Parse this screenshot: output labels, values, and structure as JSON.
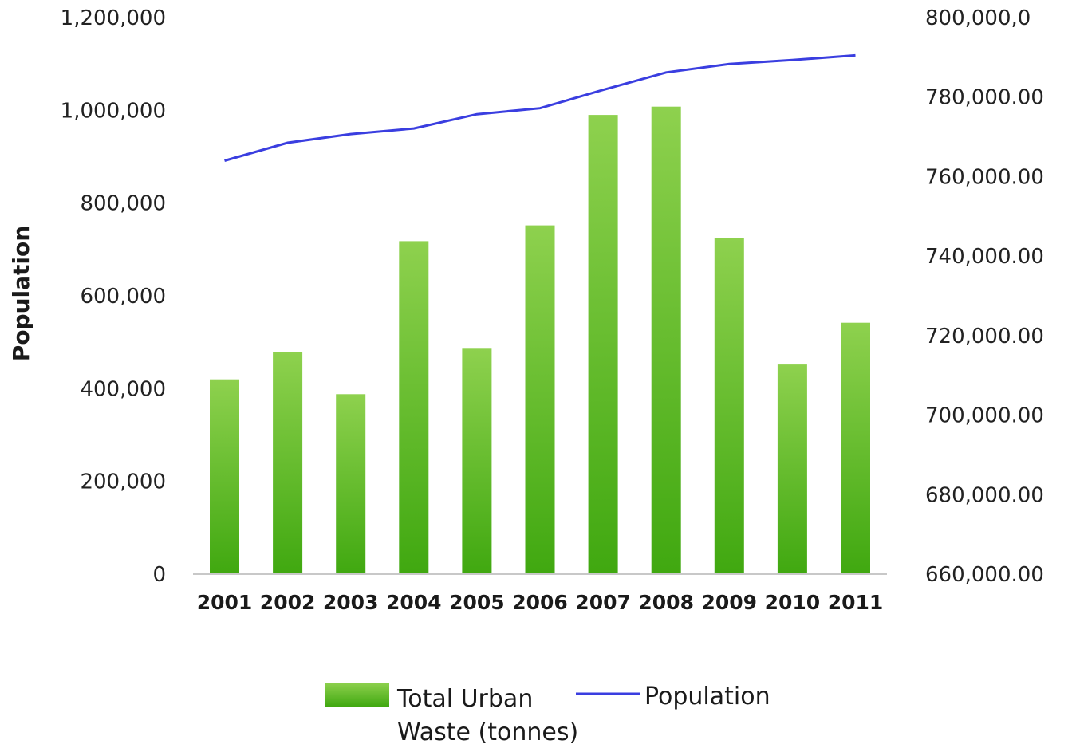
{
  "chart_data": {
    "type": "bar",
    "categories": [
      "2001",
      "2002",
      "2003",
      "2004",
      "2005",
      "2006",
      "2007",
      "2008",
      "2009",
      "2010",
      "2011"
    ],
    "series": [
      {
        "name": "Total Urban Waste (tonnes)",
        "type": "bar",
        "axis": "left",
        "color": "#5fbf2a",
        "values": [
          420000,
          478000,
          388000,
          718000,
          486000,
          752000,
          990000,
          1008000,
          725000,
          452000,
          542000
        ]
      },
      {
        "name": "Population",
        "type": "line",
        "axis": "right",
        "color": "#3a3ee0",
        "values": [
          764000,
          768500,
          770700,
          772100,
          775700,
          777200,
          781800,
          786200,
          788300,
          789300,
          790500
        ]
      }
    ],
    "legend": {
      "bar_label_line1": "Total Urban",
      "bar_label_line2": "Waste (tonnes)",
      "line_label": "Population",
      "position": "bottom"
    },
    "ylabel": "Population",
    "ylim": [
      0,
      1200000
    ],
    "y_ticks": [
      "0",
      "200,000",
      "400,000",
      "600,000",
      "800,000",
      "1,000,000",
      "1,200,000"
    ],
    "y2lim": [
      660000,
      800000
    ],
    "y2_ticks": [
      "660,000.00",
      "680,000.00",
      "700,000.00",
      "720,000.00",
      "740,000.00",
      "760,000.00",
      "780,000.00",
      "800,000,0"
    ],
    "grid": false
  }
}
